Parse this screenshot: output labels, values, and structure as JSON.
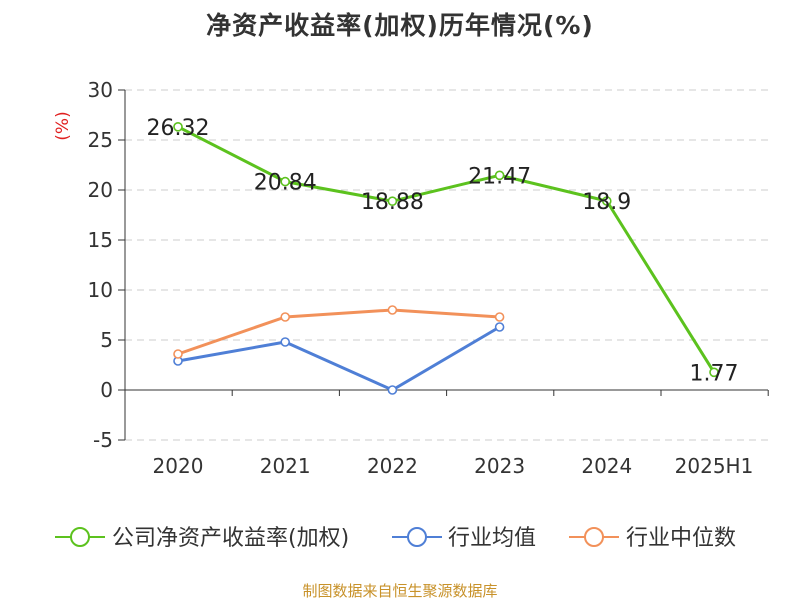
{
  "title": "净资产收益率(加权)历年情况(%)",
  "source": "制图数据来自恒生聚源数据库",
  "chart_data": {
    "type": "line",
    "title": "净资产收益率(加权)历年情况(%)",
    "y_unit": "(%)",
    "ylim": [
      -5,
      30
    ],
    "y_ticks": [
      -5,
      0,
      5,
      10,
      15,
      20,
      25,
      30
    ],
    "categories": [
      "2020",
      "2021",
      "2022",
      "2023",
      "2024",
      "2025H1"
    ],
    "grid": true,
    "legend_position": "bottom",
    "series": [
      {
        "name": "公司净资产收益率(加权)",
        "color": "#5cc21e",
        "values": [
          26.32,
          20.84,
          18.88,
          21.47,
          18.9,
          1.77
        ],
        "labels": [
          "26.32",
          "20.84",
          "18.88",
          "21.47",
          "18.9",
          "1.77"
        ]
      },
      {
        "name": "行业均值",
        "color": "#4f7fd6",
        "values": [
          2.9,
          4.8,
          0.0,
          6.3,
          null,
          null
        ]
      },
      {
        "name": "行业中位数",
        "color": "#f2915a",
        "values": [
          3.6,
          7.3,
          8.0,
          7.3,
          null,
          null
        ]
      }
    ]
  }
}
